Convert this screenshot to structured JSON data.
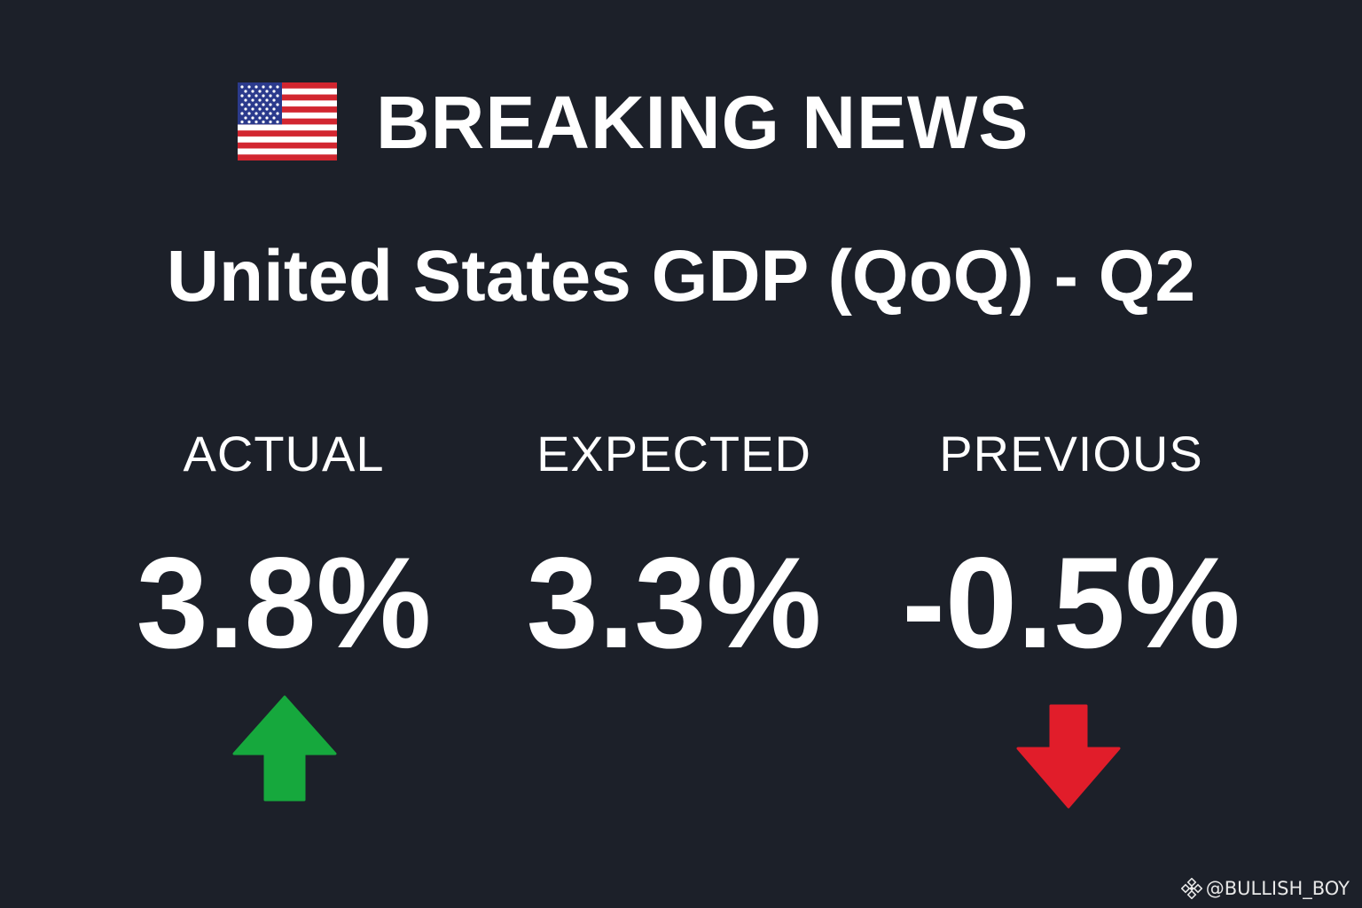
{
  "header": {
    "flag_icon": "us-flag-icon",
    "title": "BREAKING NEWS"
  },
  "subtitle": "United States GDP (QoQ) - Q2",
  "stats": [
    {
      "label": "ACTUAL",
      "value": "3.8%",
      "trend": "up",
      "trend_color": "#16a83d"
    },
    {
      "label": "EXPECTED",
      "value": "3.3%",
      "trend": "none"
    },
    {
      "label": "PREVIOUS",
      "value": "-0.5%",
      "trend": "down",
      "trend_color": "#e11d2a"
    }
  ],
  "watermark": {
    "icon": "binance-logo-icon",
    "text": "@BULLISH_BOY"
  },
  "colors": {
    "background": "#1c2029",
    "text": "#ffffff",
    "up": "#16a83d",
    "down": "#e11d2a"
  }
}
